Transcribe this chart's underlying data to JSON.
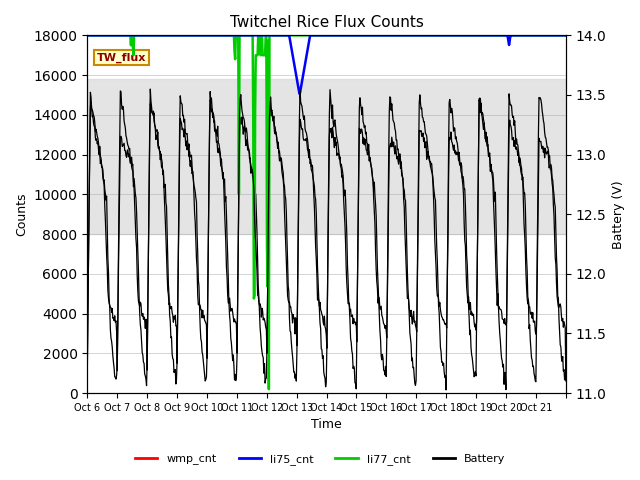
{
  "title": "Twitchel Rice Flux Counts",
  "xlabel": "Time",
  "ylabel_left": "Counts",
  "ylabel_right": "Battery (V)",
  "ylim_left": [
    0,
    18000
  ],
  "ylim_right": [
    11.0,
    14.0
  ],
  "yticks_left": [
    0,
    2000,
    4000,
    6000,
    8000,
    10000,
    12000,
    14000,
    16000,
    18000
  ],
  "yticks_right": [
    11.0,
    11.5,
    12.0,
    12.5,
    13.0,
    13.5,
    14.0
  ],
  "xtick_positions": [
    0,
    1,
    2,
    3,
    4,
    5,
    6,
    7,
    8,
    9,
    10,
    11,
    12,
    13,
    14,
    15,
    16
  ],
  "xtick_labels": [
    "Oct 6",
    "Oct 7",
    "Oct 8",
    "Oct 9",
    "Oct 10",
    "Oct 11",
    "Oct 12",
    "Oct 13",
    "Oct 14",
    "Oct 15",
    "Oct 16",
    "Oct 17",
    "Oct 18",
    "Oct 19",
    "Oct 20",
    "Oct 21",
    ""
  ],
  "shaded_band": [
    8000,
    15800
  ],
  "annotation_box": "TW_flux",
  "colors": {
    "wmp_cnt": "#ff0000",
    "li75_cnt": "#0000ff",
    "li77_cnt": "#00cc00",
    "battery": "#000000",
    "shaded": "#d3d3d3"
  },
  "legend_labels": [
    "wmp_cnt",
    "li75_cnt",
    "li77_cnt",
    "Battery"
  ]
}
